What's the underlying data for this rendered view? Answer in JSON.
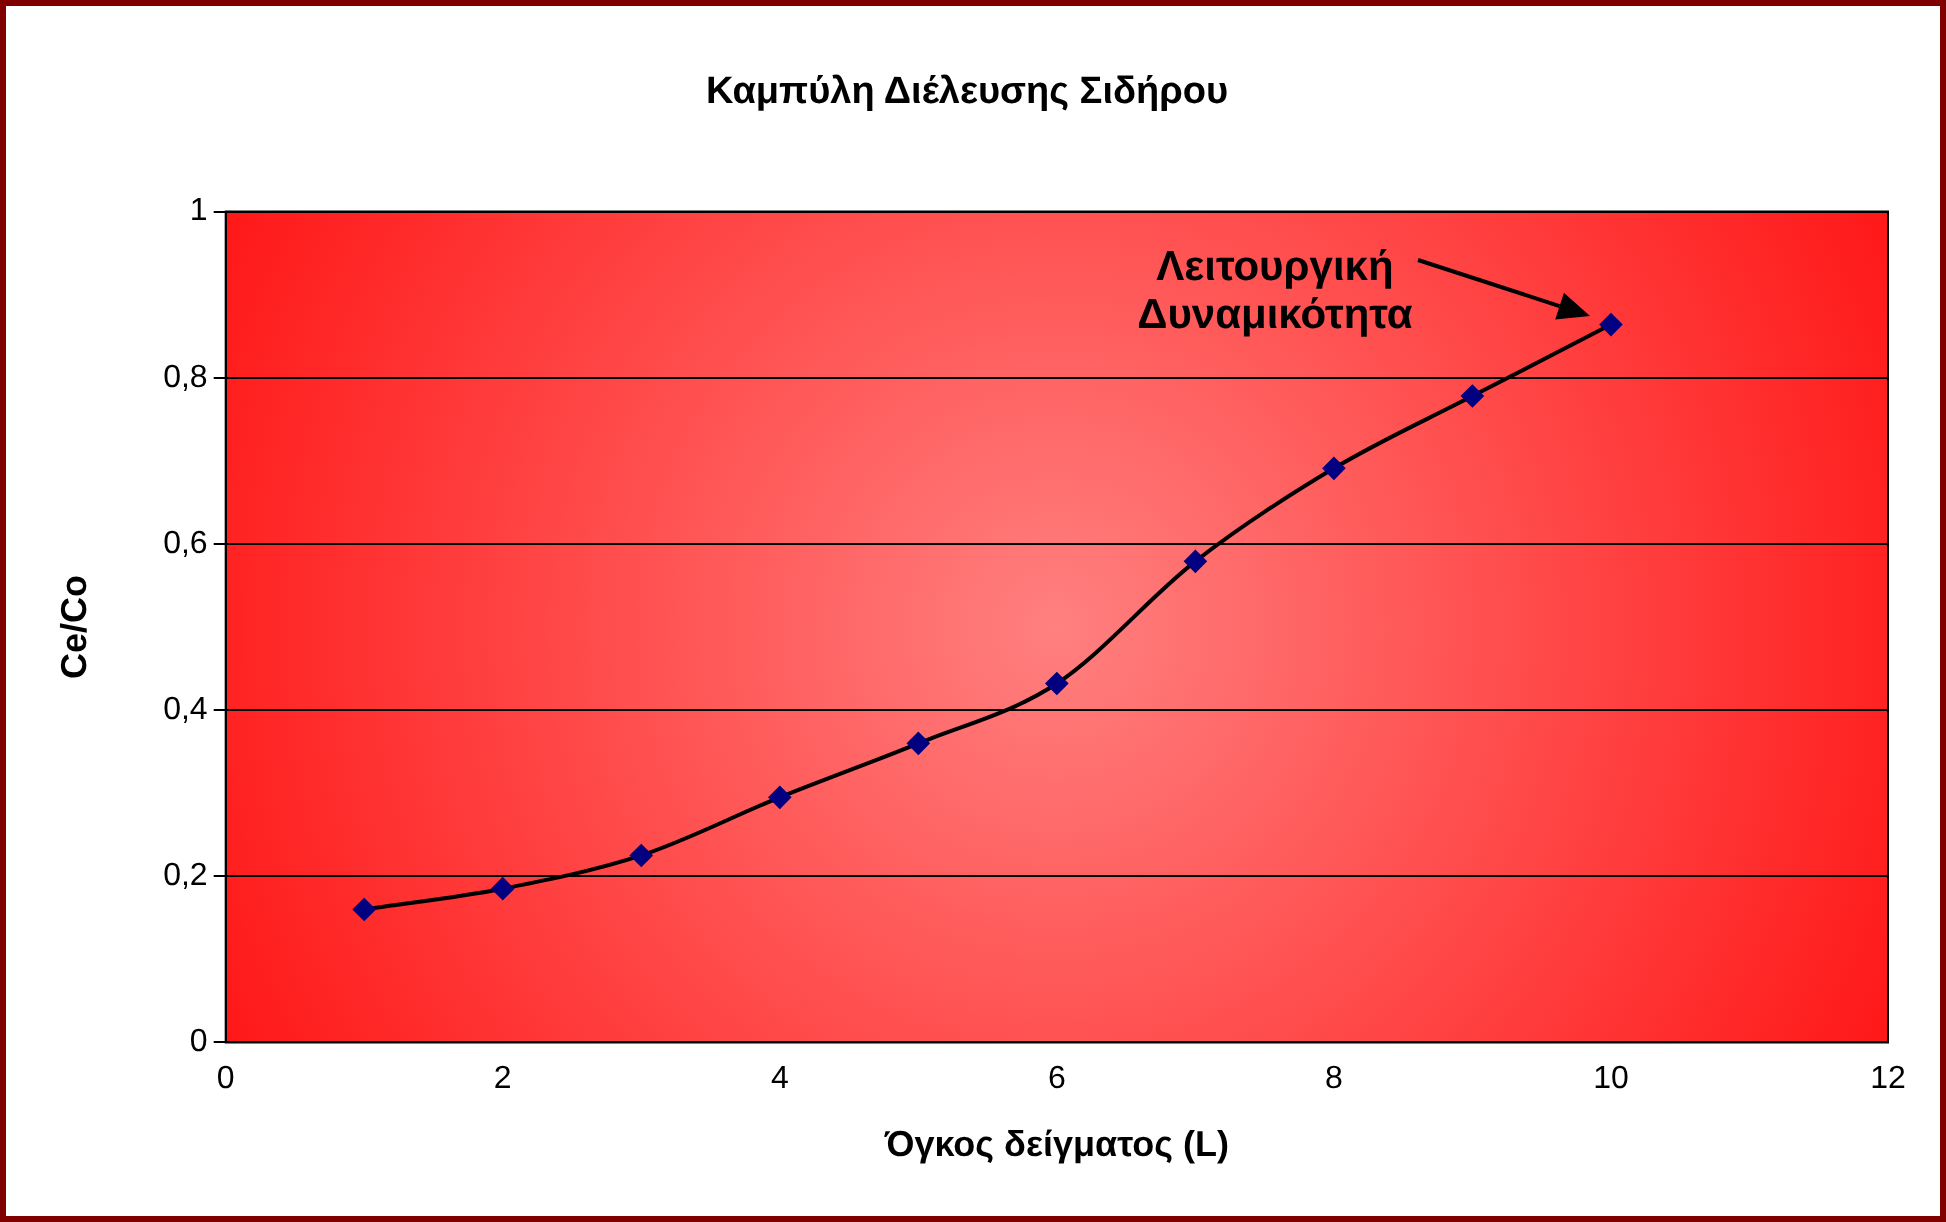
{
  "chart_data": {
    "type": "line",
    "title": "Καμπύλη Διέλευσης Σιδήρου",
    "xlabel": "Όγκος δείγματος (L)",
    "ylabel": "Ce/Co",
    "x": [
      1,
      2,
      3,
      4,
      5,
      6,
      7,
      8,
      9,
      10
    ],
    "series": [
      {
        "color": "#000000",
        "values": [
          0.16,
          0.185,
          0.225,
          0.295,
          0.36,
          0.432,
          0.579,
          0.691,
          0.778,
          0.864
        ]
      }
    ],
    "xlim": [
      0,
      12
    ],
    "xticks": [
      0,
      2,
      4,
      6,
      8,
      10,
      12
    ],
    "ylim": [
      0,
      1
    ],
    "yticks": [
      {
        "value": 0,
        "label": "0"
      },
      {
        "value": 0.2,
        "label": "0,2"
      },
      {
        "value": 0.4,
        "label": "0,4"
      },
      {
        "value": 0.6,
        "label": "0,6"
      },
      {
        "value": 0.8,
        "label": "0,8"
      },
      {
        "value": 1,
        "label": "1"
      }
    ],
    "grid": "y",
    "marker": "diamond",
    "line_style": "solid",
    "legend": false,
    "annotations": [
      "Λειτουργική\nΔυναμικότητα"
    ]
  }
}
